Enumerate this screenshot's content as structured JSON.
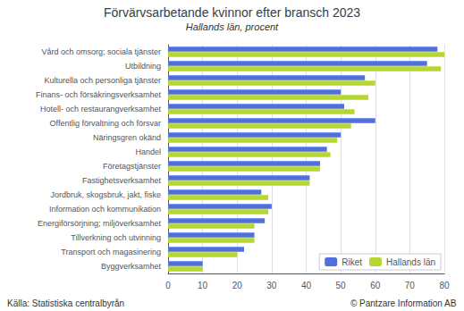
{
  "chart_data": {
    "type": "bar",
    "orientation": "horizontal",
    "title": "Förvärvsarbetande kvinnor efter bransch 2023",
    "subtitle": "Hallands län, procent",
    "categories": [
      "Vård och omsorg; sociala tjänster",
      "Utbildning",
      "Kulturella och personliga tjänster",
      "Finans- och försäkringsverksamhet",
      "Hotell- och restaurangverksamhet",
      "Offentlig förvaltning och försvar",
      "Näringsgren okänd",
      "Handel",
      "Företagstjänster",
      "Fastighetsverksamhet",
      "Jordbruk, skogsbruk, jakt, fiske",
      "Information och kommunikation",
      "Energiförsörjning; miljöverksamhet",
      "Tillverkning och utvinning",
      "Transport och magasinering",
      "Byggverksamhet"
    ],
    "series": [
      {
        "name": "Riket",
        "values": [
          78,
          75,
          57,
          50,
          51,
          60,
          50,
          46,
          44,
          41,
          27,
          30,
          28,
          25,
          22,
          10
        ]
      },
      {
        "name": "Hallands län",
        "values": [
          80,
          79,
          60,
          58,
          54,
          53,
          49,
          47,
          44,
          41,
          29,
          29,
          25,
          25,
          20,
          10
        ]
      }
    ],
    "xlim": [
      0,
      80
    ],
    "xticks": [
      0,
      10,
      20,
      30,
      40,
      50,
      60,
      70,
      80
    ],
    "grid": true,
    "legend": "lower right",
    "annotations": [
      "Källa: Statistiska centralbyrån",
      "© Pantzare Information AB"
    ]
  }
}
